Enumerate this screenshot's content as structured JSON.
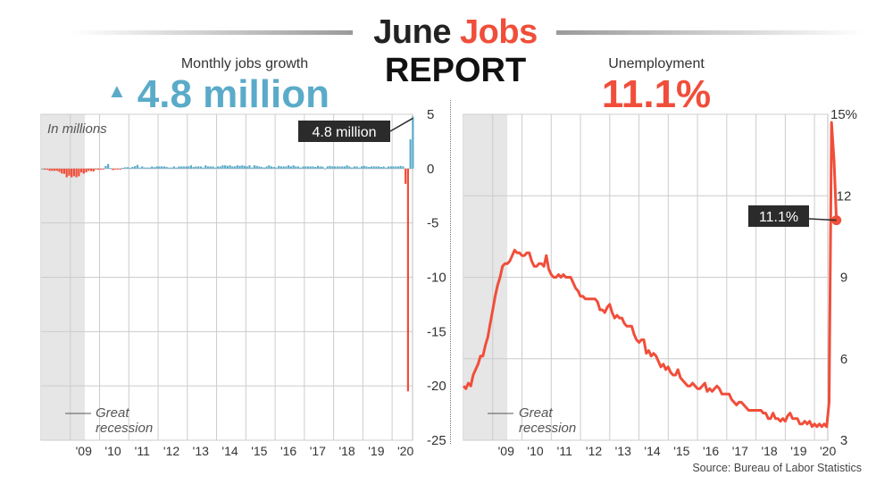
{
  "header": {
    "title_part1": "June ",
    "title_part2": "Jobs",
    "title_line2": "REPORT"
  },
  "left_panel": {
    "subtitle": "Monthly jobs growth",
    "arrow_glyph": "▲",
    "headline": "4.8 million"
  },
  "right_panel": {
    "subtitle": "Unemployment",
    "headline": "11.1%"
  },
  "source": "Source: Bureau of Labor Statistics",
  "colors": {
    "positive": "#5aabc9",
    "negative": "#f04e3a",
    "recession": "#e6e6e6",
    "grid": "#cccccc",
    "callout": "#2b2b2b"
  },
  "chart_data": [
    {
      "type": "bar",
      "unit_label": "In millions",
      "x_tick_labels": [
        "'09",
        "'10",
        "'11",
        "'12",
        "'13",
        "'14",
        "'15",
        "'16",
        "'17",
        "'18",
        "'19",
        "'20"
      ],
      "ylim": [
        -25,
        5
      ],
      "y_ticks": [
        5,
        0,
        -5,
        -10,
        -15,
        -20,
        -25
      ],
      "annotations": [
        {
          "text": "4.8 million",
          "value": 4.8,
          "period": "2020-06"
        },
        {
          "text": "Great\nrecession",
          "period": "2008-01 to 2009-06"
        }
      ],
      "series": [
        {
          "start": "2008-01",
          "values": [
            0.0,
            -0.1,
            -0.1,
            -0.2,
            -0.2,
            -0.2,
            -0.2,
            -0.3,
            -0.45,
            -0.48,
            -0.8,
            -0.65,
            -0.8,
            -0.7,
            -0.8,
            -0.7,
            -0.35,
            -0.46,
            -0.34,
            -0.21,
            -0.23,
            -0.26,
            -0.01,
            -0.11,
            -0.02,
            -0.03,
            0.24,
            0.42,
            0.04,
            -0.13,
            -0.05,
            -0.07,
            -0.03,
            0.07,
            0.12,
            0.13,
            0.08,
            0.16,
            0.22,
            0.34,
            0.1,
            0.2,
            0.1,
            0.1,
            0.1,
            0.2,
            0.13,
            0.2,
            0.2,
            0.2,
            0.2,
            0.16,
            0.1,
            0.1,
            0.2,
            0.1,
            0.2,
            0.2,
            0.2,
            0.2,
            0.2,
            0.3,
            0.15,
            0.2,
            0.2,
            0.2,
            0.1,
            0.3,
            0.2,
            0.2,
            0.2,
            0.1,
            0.2,
            0.2,
            0.3,
            0.3,
            0.25,
            0.3,
            0.2,
            0.2,
            0.3,
            0.25,
            0.3,
            0.25,
            0.2,
            0.3,
            0.1,
            0.3,
            0.25,
            0.2,
            0.15,
            0.1,
            0.2,
            0.3,
            0.2,
            0.15,
            0.1,
            0.25,
            0.2,
            0.2,
            0.2,
            0.3,
            0.2,
            0.3,
            0.2,
            0.2,
            0.1,
            0.2,
            0.2,
            0.2,
            0.2,
            0.2,
            0.15,
            0.25,
            0.2,
            0.18,
            0.02,
            0.2,
            0.25,
            0.2,
            0.2,
            0.2,
            0.2,
            0.2,
            0.2,
            0.3,
            0.2,
            0.1,
            0.2,
            0.2,
            0.1,
            0.2,
            0.25,
            0.2,
            0.15,
            0.2,
            0.2,
            0.2,
            0.2,
            0.15,
            0.2,
            0.1,
            0.2,
            0.2,
            0.2,
            0.2,
            0.2,
            0.25,
            0.2,
            -1.4,
            -20.5,
            2.7,
            4.8
          ]
        }
      ]
    },
    {
      "type": "line",
      "x_tick_labels": [
        "'09",
        "'10",
        "'11",
        "'12",
        "'13",
        "'14",
        "'15",
        "'16",
        "'17",
        "'18",
        "'19",
        "'20"
      ],
      "ylim": [
        3,
        15
      ],
      "y_ticks": [
        "15%",
        "12",
        "9",
        "6",
        "3"
      ],
      "annotations": [
        {
          "text": "11.1%",
          "value": 11.1,
          "period": "2020-06"
        },
        {
          "text": "Great\nrecession",
          "period": "2008-01 to 2009-06"
        }
      ],
      "series": [
        {
          "start": "2008-01",
          "values": [
            5.0,
            4.9,
            5.1,
            5.0,
            5.4,
            5.6,
            5.8,
            6.1,
            6.1,
            6.5,
            6.8,
            7.3,
            7.8,
            8.3,
            8.7,
            9.0,
            9.4,
            9.5,
            9.5,
            9.6,
            9.8,
            10.0,
            9.9,
            9.9,
            9.8,
            9.8,
            9.9,
            9.9,
            9.6,
            9.4,
            9.4,
            9.5,
            9.5,
            9.4,
            9.8,
            9.3,
            9.1,
            9.0,
            9.0,
            9.1,
            9.0,
            9.1,
            9.0,
            9.0,
            9.0,
            8.8,
            8.6,
            8.5,
            8.3,
            8.3,
            8.2,
            8.2,
            8.2,
            8.2,
            8.2,
            8.1,
            7.8,
            7.8,
            7.7,
            7.9,
            8.0,
            7.7,
            7.5,
            7.6,
            7.5,
            7.5,
            7.3,
            7.2,
            7.2,
            7.2,
            6.9,
            6.7,
            6.6,
            6.7,
            6.7,
            6.2,
            6.3,
            6.1,
            6.2,
            6.1,
            5.9,
            5.7,
            5.8,
            5.6,
            5.7,
            5.5,
            5.4,
            5.4,
            5.6,
            5.3,
            5.2,
            5.1,
            5.0,
            5.0,
            5.1,
            5.0,
            4.9,
            4.9,
            5.0,
            5.1,
            4.8,
            4.9,
            4.8,
            4.9,
            5.0,
            4.9,
            4.7,
            4.7,
            4.7,
            4.7,
            4.5,
            4.4,
            4.3,
            4.4,
            4.4,
            4.3,
            4.2,
            4.1,
            4.1,
            4.1,
            4.1,
            4.1,
            4.1,
            4.0,
            4.0,
            3.8,
            3.8,
            4.0,
            3.8,
            3.8,
            3.7,
            3.8,
            3.7,
            3.9,
            4.0,
            3.8,
            3.8,
            3.8,
            3.6,
            3.6,
            3.7,
            3.6,
            3.7,
            3.5,
            3.6,
            3.5,
            3.6,
            3.5,
            3.6,
            3.5,
            4.4,
            14.7,
            13.3,
            11.1
          ]
        }
      ]
    }
  ]
}
